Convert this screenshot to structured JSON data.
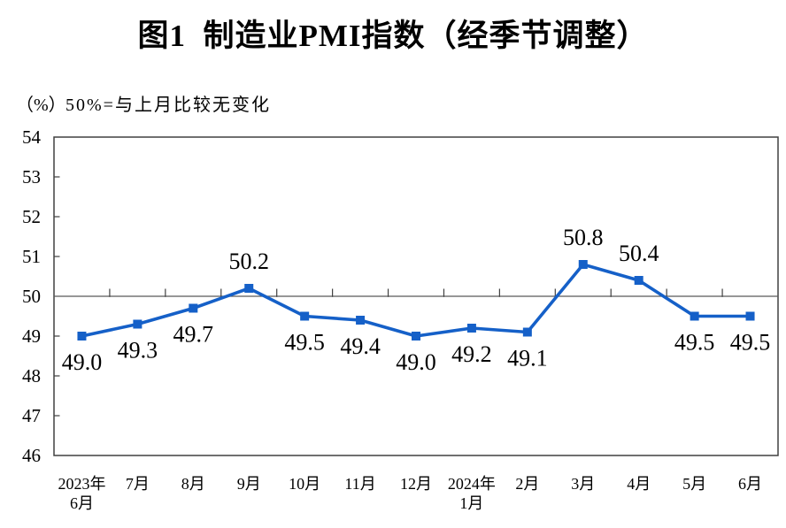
{
  "chart_data": {
    "type": "line",
    "title": "图1  制造业PMI指数（经季节调整）",
    "unit_label": "（%）",
    "reference_note": "50%=与上月比较无变化",
    "categories": [
      [
        "2023年",
        "6月"
      ],
      [
        "7月"
      ],
      [
        "8月"
      ],
      [
        "9月"
      ],
      [
        "10月"
      ],
      [
        "11月"
      ],
      [
        "12月"
      ],
      [
        "2024年",
        "1月"
      ],
      [
        "2月"
      ],
      [
        "3月"
      ],
      [
        "4月"
      ],
      [
        "5月"
      ],
      [
        "6月"
      ]
    ],
    "values": [
      49.0,
      49.3,
      49.7,
      50.2,
      49.5,
      49.4,
      49.0,
      49.2,
      49.1,
      50.8,
      50.4,
      49.5,
      49.5
    ],
    "data_labels": [
      "49.0",
      "49.3",
      "49.7",
      "50.2",
      "49.5",
      "49.4",
      "49.0",
      "49.2",
      "49.1",
      "50.8",
      "50.4",
      "49.5",
      "49.5"
    ],
    "label_positions": [
      "below",
      "below",
      "below",
      "above",
      "below",
      "below",
      "below",
      "below",
      "below",
      "above",
      "above",
      "below",
      "below"
    ],
    "ylim": [
      46,
      54
    ],
    "ytick_step": 1,
    "ytick_labels": [
      "46",
      "47",
      "48",
      "49",
      "50",
      "51",
      "52",
      "53",
      "54"
    ],
    "reference_line_y": 50,
    "grid": "off",
    "legend": "none",
    "colors": {
      "line": "#1560C8",
      "marker": "#1560C8",
      "axis": "#404040",
      "reference_line": "#595959",
      "text": "#000000"
    }
  }
}
